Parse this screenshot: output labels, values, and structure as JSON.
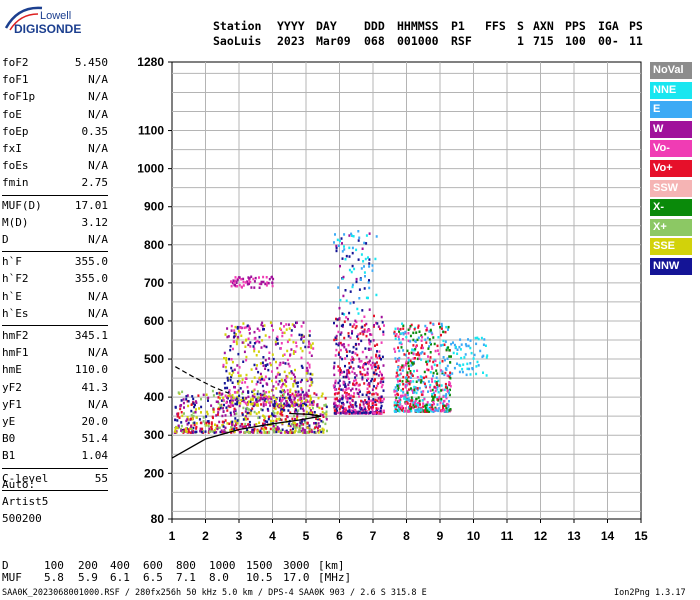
{
  "logo": {
    "line1": "Lowell",
    "line2": "DIGISONDE"
  },
  "header": {
    "labels": [
      "Station",
      "YYYY",
      "DAY",
      "DDD",
      "HHMMSS",
      "P1",
      "FFS",
      "S",
      "AXN",
      "PPS",
      "IGA",
      "PS"
    ],
    "values": [
      "SaoLuis",
      "2023",
      "Mar09",
      "068",
      "001000",
      "RSF",
      "",
      "1",
      "715",
      "100",
      "00-",
      "11"
    ]
  },
  "params_group1": [
    {
      "name": "foF2",
      "value": "5.450"
    },
    {
      "name": "foF1",
      "value": "N/A"
    },
    {
      "name": "foF1p",
      "value": "N/A"
    },
    {
      "name": "foE",
      "value": "N/A"
    },
    {
      "name": "foEp",
      "value": "0.35"
    },
    {
      "name": "fxI",
      "value": "N/A"
    },
    {
      "name": "foEs",
      "value": "N/A"
    },
    {
      "name": "fmin",
      "value": "2.75"
    }
  ],
  "params_group2": [
    {
      "name": "MUF(D)",
      "value": "17.01"
    },
    {
      "name": "M(D)",
      "value": "3.12"
    },
    {
      "name": "D",
      "value": "N/A"
    }
  ],
  "params_group3": [
    {
      "name": "h`F",
      "value": "355.0"
    },
    {
      "name": "h`F2",
      "value": "355.0"
    },
    {
      "name": "h`E",
      "value": "N/A"
    },
    {
      "name": "h`Es",
      "value": "N/A"
    }
  ],
  "params_group4": [
    {
      "name": "hmF2",
      "value": "345.1"
    },
    {
      "name": "hmF1",
      "value": "N/A"
    },
    {
      "name": "hmE",
      "value": "110.0"
    },
    {
      "name": "yF2",
      "value": "41.3"
    },
    {
      "name": "yF1",
      "value": "N/A"
    },
    {
      "name": "yE",
      "value": "20.0"
    },
    {
      "name": "B0",
      "value": "51.4"
    },
    {
      "name": "B1",
      "value": "1.04"
    }
  ],
  "params_group5": [
    {
      "name": "C-level",
      "value": "55"
    }
  ],
  "auto": {
    "line1": "Auto:",
    "line2": "Artist5",
    "line3": "500200"
  },
  "legend": [
    {
      "label": "NoVal",
      "color": "#8c8c8c"
    },
    {
      "label": "NNE",
      "color": "#19e6f0"
    },
    {
      "label": "E",
      "color": "#3caaf5"
    },
    {
      "label": "W",
      "color": "#a0119b"
    },
    {
      "label": "Vo-",
      "color": "#f03cb4"
    },
    {
      "label": "Vo+",
      "color": "#e6102a"
    },
    {
      "label": "SSW",
      "color": "#f5b4b4"
    },
    {
      "label": "X-",
      "color": "#0a8a0a"
    },
    {
      "label": "X+",
      "color": "#8cc864"
    },
    {
      "label": "SSE",
      "color": "#d2d20a"
    },
    {
      "label": "NNW",
      "color": "#141496"
    }
  ],
  "bottom": {
    "d_label": "D",
    "d_values": [
      "100",
      "200",
      "400",
      "600",
      "800",
      "1000",
      "1500",
      "3000",
      "[km]"
    ],
    "muf_label": "MUF",
    "muf_values": [
      "5.8",
      "5.9",
      "6.1",
      "6.5",
      "7.1",
      "8.0",
      "10.5",
      "17.0",
      "[MHz]"
    ]
  },
  "footer": {
    "left": "SAA0K_2023068001000.RSF / 280fx256h 50 kHz 5.0 km / DPS-4 SAA0K 903 / 2.6 S 315.8 E",
    "right": "Ion2Png 1.3.17"
  },
  "chart_data": {
    "type": "scatter",
    "title": "",
    "xlabel": "",
    "ylabel": "",
    "xlim": [
      1,
      15
    ],
    "ylim": [
      80,
      1280
    ],
    "x_ticks": [
      1,
      2,
      3,
      4,
      5,
      6,
      7,
      8,
      9,
      10,
      11,
      12,
      13,
      14,
      15
    ],
    "y_ticks": [
      80,
      200,
      300,
      400,
      500,
      600,
      700,
      800,
      900,
      1000,
      1100,
      1280
    ],
    "grid": true,
    "echo_clusters": [
      {
        "name": "O-trace",
        "x_range": [
          1.05,
          5.6
        ],
        "y_range": [
          310,
          420
        ],
        "colors": [
          "W",
          "NNW",
          "SSE",
          "X+",
          "Vo+"
        ]
      },
      {
        "name": "F-spread-1",
        "x_range": [
          2.5,
          5.2
        ],
        "y_range": [
          380,
          600
        ],
        "colors": [
          "W",
          "NNW",
          "Vo-",
          "SSE"
        ]
      },
      {
        "name": "F-spread-2",
        "x_range": [
          5.8,
          7.3
        ],
        "y_range": [
          360,
          620
        ],
        "colors": [
          "Vo+",
          "W",
          "NNW",
          "Vo-"
        ]
      },
      {
        "name": "F-spread-3",
        "x_range": [
          7.6,
          9.3
        ],
        "y_range": [
          365,
          600
        ],
        "colors": [
          "Vo+",
          "Vo-",
          "NNE",
          "E",
          "X-"
        ]
      },
      {
        "name": "high-spread",
        "x_range": [
          2.7,
          4.0
        ],
        "y_range": [
          690,
          720
        ],
        "colors": [
          "W",
          "Vo-"
        ]
      },
      {
        "name": "scatter-high",
        "x_range": [
          5.8,
          7.1
        ],
        "y_range": [
          620,
          840
        ],
        "colors": [
          "W",
          "NNE",
          "E",
          "NNW"
        ]
      },
      {
        "name": "far-tail",
        "x_range": [
          9.3,
          10.4
        ],
        "y_range": [
          460,
          560
        ],
        "colors": [
          "NNE",
          "E"
        ]
      }
    ],
    "profile": [
      {
        "x": 1.0,
        "y": 240
      },
      {
        "x": 2.0,
        "y": 290
      },
      {
        "x": 3.0,
        "y": 315
      },
      {
        "x": 4.0,
        "y": 330
      },
      {
        "x": 4.8,
        "y": 340
      },
      {
        "x": 5.45,
        "y": 350
      },
      {
        "x": 5.1,
        "y": 355
      },
      {
        "x": 4.5,
        "y": 357
      }
    ],
    "extrapolated": [
      {
        "x": 1.1,
        "y": 480
      },
      {
        "x": 1.6,
        "y": 455
      },
      {
        "x": 2.2,
        "y": 428
      },
      {
        "x": 2.7,
        "y": 410
      }
    ]
  }
}
